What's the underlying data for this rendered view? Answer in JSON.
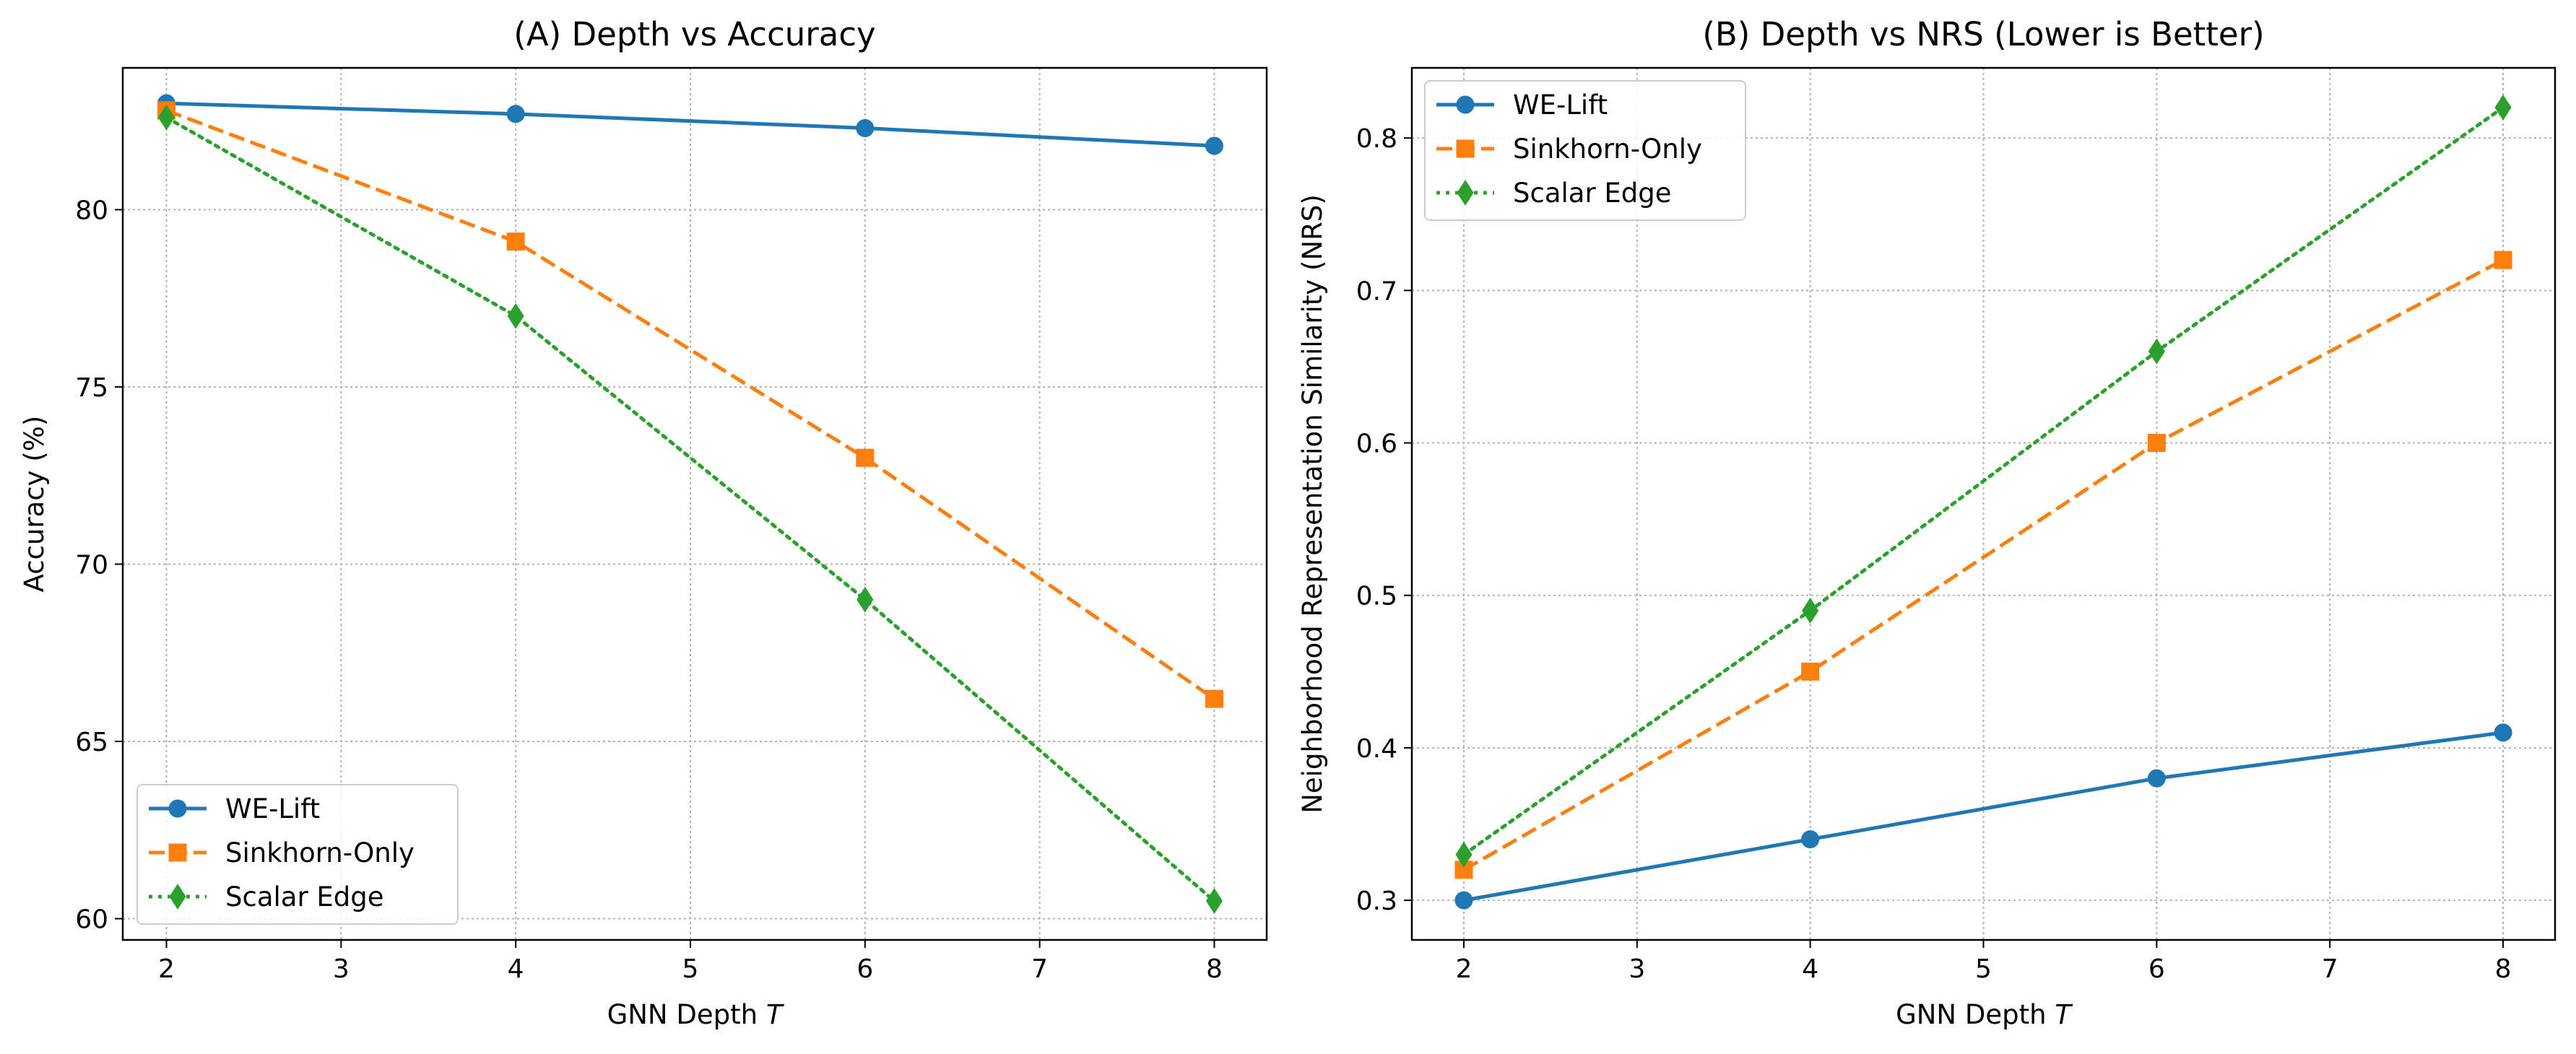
{
  "chart_data": [
    {
      "type": "line",
      "title": "(A) Depth vs Accuracy",
      "xlabel": "GNN Depth",
      "xlabel_var": "T",
      "ylabel": "Accuracy (%)",
      "xlim": [
        1.75,
        8.3
      ],
      "ylim": [
        59.4,
        84.0
      ],
      "xticks": [
        2,
        3,
        4,
        5,
        6,
        7,
        8
      ],
      "yticks": [
        60,
        65,
        70,
        75,
        80
      ],
      "grid": true,
      "legend_position": "lower-left",
      "x": [
        2,
        4,
        6,
        8
      ],
      "series": [
        {
          "name": "WE-Lift",
          "values": [
            83.0,
            82.7,
            82.3,
            81.8
          ],
          "color": "#1f77b4",
          "marker": "circle",
          "linestyle": "solid"
        },
        {
          "name": "Sinkhorn-Only",
          "values": [
            82.8,
            79.1,
            73.0,
            66.2
          ],
          "color": "#ff7f0e",
          "marker": "square",
          "linestyle": "dashed"
        },
        {
          "name": "Scalar Edge",
          "values": [
            82.6,
            77.0,
            69.0,
            60.5
          ],
          "color": "#2ca02c",
          "marker": "diamond",
          "linestyle": "dotted"
        }
      ]
    },
    {
      "type": "line",
      "title": "(B) Depth vs NRS (Lower is Better)",
      "xlabel": "GNN Depth",
      "xlabel_var": "T",
      "ylabel": "Neighborhood Representation Similarity (NRS)",
      "xlim": [
        1.7,
        8.3
      ],
      "ylim": [
        0.274,
        0.846
      ],
      "xticks": [
        2,
        3,
        4,
        5,
        6,
        7,
        8
      ],
      "yticks": [
        0.3,
        0.4,
        0.5,
        0.6,
        0.7,
        0.8
      ],
      "grid": true,
      "legend_position": "upper-left",
      "x": [
        2,
        4,
        6,
        8
      ],
      "series": [
        {
          "name": "WE-Lift",
          "values": [
            0.3,
            0.34,
            0.38,
            0.41
          ],
          "color": "#1f77b4",
          "marker": "circle",
          "linestyle": "solid"
        },
        {
          "name": "Sinkhorn-Only",
          "values": [
            0.32,
            0.45,
            0.6,
            0.72
          ],
          "color": "#ff7f0e",
          "marker": "square",
          "linestyle": "dashed"
        },
        {
          "name": "Scalar Edge",
          "values": [
            0.33,
            0.49,
            0.66,
            0.82
          ],
          "color": "#2ca02c",
          "marker": "diamond",
          "linestyle": "dotted"
        }
      ]
    }
  ]
}
